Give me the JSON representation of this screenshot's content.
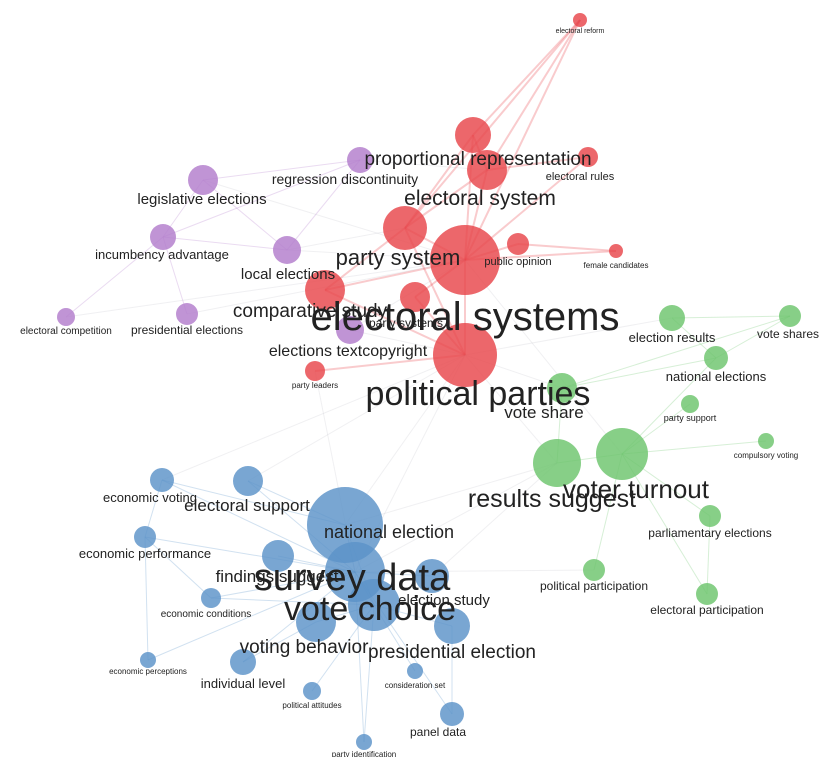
{
  "colors": {
    "red": "#e8454a",
    "purple": "#b27ccc",
    "green": "#6dc46c",
    "blue": "#5b93c8",
    "edge": "#b9b9c6"
  },
  "nodes": [
    {
      "id": "electoral-reform",
      "label": "electoral reform",
      "cluster": "red"
    },
    {
      "id": "proportional-representation",
      "label": "proportional representation",
      "cluster": "red"
    },
    {
      "id": "regression-discontinuity",
      "label": "regression discontinuity",
      "cluster": "purple"
    },
    {
      "id": "electoral-rules",
      "label": "electoral rules",
      "cluster": "red"
    },
    {
      "id": "legislative-elections",
      "label": "legislative elections",
      "cluster": "purple"
    },
    {
      "id": "electoral-system",
      "label": "electoral system",
      "cluster": "red"
    },
    {
      "id": "incumbency-advantage",
      "label": "incumbency advantage",
      "cluster": "purple"
    },
    {
      "id": "party-system",
      "label": "party system",
      "cluster": "red"
    },
    {
      "id": "public-opinion",
      "label": "public opinion",
      "cluster": "red"
    },
    {
      "id": "female-candidates",
      "label": "female candidates",
      "cluster": "red"
    },
    {
      "id": "local-elections",
      "label": "local elections",
      "cluster": "purple"
    },
    {
      "id": "comparative-study",
      "label": "comparative study",
      "cluster": "red"
    },
    {
      "id": "electoral-systems",
      "label": "electoral systems",
      "cluster": "red"
    },
    {
      "id": "party-systems",
      "label": "party systems",
      "cluster": "red"
    },
    {
      "id": "electoral-competition",
      "label": "electoral competition",
      "cluster": "purple"
    },
    {
      "id": "presidential-elections",
      "label": "presidential elections",
      "cluster": "purple"
    },
    {
      "id": "elections-textcopyright",
      "label": "elections textcopyright",
      "cluster": "purple"
    },
    {
      "id": "party-leaders",
      "label": "party leaders",
      "cluster": "red"
    },
    {
      "id": "political-parties",
      "label": "political parties",
      "cluster": "red"
    },
    {
      "id": "election-results",
      "label": "election results",
      "cluster": "green"
    },
    {
      "id": "vote-shares",
      "label": "vote shares",
      "cluster": "green"
    },
    {
      "id": "national-elections",
      "label": "national elections",
      "cluster": "green"
    },
    {
      "id": "vote-share",
      "label": "vote share",
      "cluster": "green"
    },
    {
      "id": "party-support",
      "label": "party support",
      "cluster": "green"
    },
    {
      "id": "compulsory-voting",
      "label": "compulsory voting",
      "cluster": "green"
    },
    {
      "id": "voter-turnout",
      "label": "voter turnout",
      "cluster": "green"
    },
    {
      "id": "results-suggest",
      "label": "results suggest",
      "cluster": "green"
    },
    {
      "id": "parliamentary-elections",
      "label": "parliamentary elections",
      "cluster": "green"
    },
    {
      "id": "political-participation",
      "label": "political participation",
      "cluster": "green"
    },
    {
      "id": "electoral-participation",
      "label": "electoral participation",
      "cluster": "green"
    },
    {
      "id": "economic-voting",
      "label": "economic voting",
      "cluster": "blue"
    },
    {
      "id": "electoral-support",
      "label": "electoral support",
      "cluster": "blue"
    },
    {
      "id": "national-election",
      "label": "national election",
      "cluster": "blue"
    },
    {
      "id": "economic-performance",
      "label": "economic performance",
      "cluster": "blue"
    },
    {
      "id": "findings-suggest",
      "label": "findings suggest",
      "cluster": "blue"
    },
    {
      "id": "survey-data",
      "label": "survey data",
      "cluster": "blue"
    },
    {
      "id": "economic-conditions",
      "label": "economic conditions",
      "cluster": "blue"
    },
    {
      "id": "election-study",
      "label": "election study",
      "cluster": "blue"
    },
    {
      "id": "vote-choice",
      "label": "vote choice",
      "cluster": "blue"
    },
    {
      "id": "voting-behavior",
      "label": "voting behavior",
      "cluster": "blue"
    },
    {
      "id": "presidential-election",
      "label": "presidential election",
      "cluster": "blue"
    },
    {
      "id": "economic-perceptions",
      "label": "economic perceptions",
      "cluster": "blue"
    },
    {
      "id": "individual-level",
      "label": "individual level",
      "cluster": "blue"
    },
    {
      "id": "consideration-set",
      "label": "consideration set",
      "cluster": "blue"
    },
    {
      "id": "political-attitudes",
      "label": "political attitudes",
      "cluster": "blue"
    },
    {
      "id": "panel-data",
      "label": "panel data",
      "cluster": "blue"
    },
    {
      "id": "party-identification",
      "label": "party identification",
      "cluster": "blue"
    }
  ]
}
